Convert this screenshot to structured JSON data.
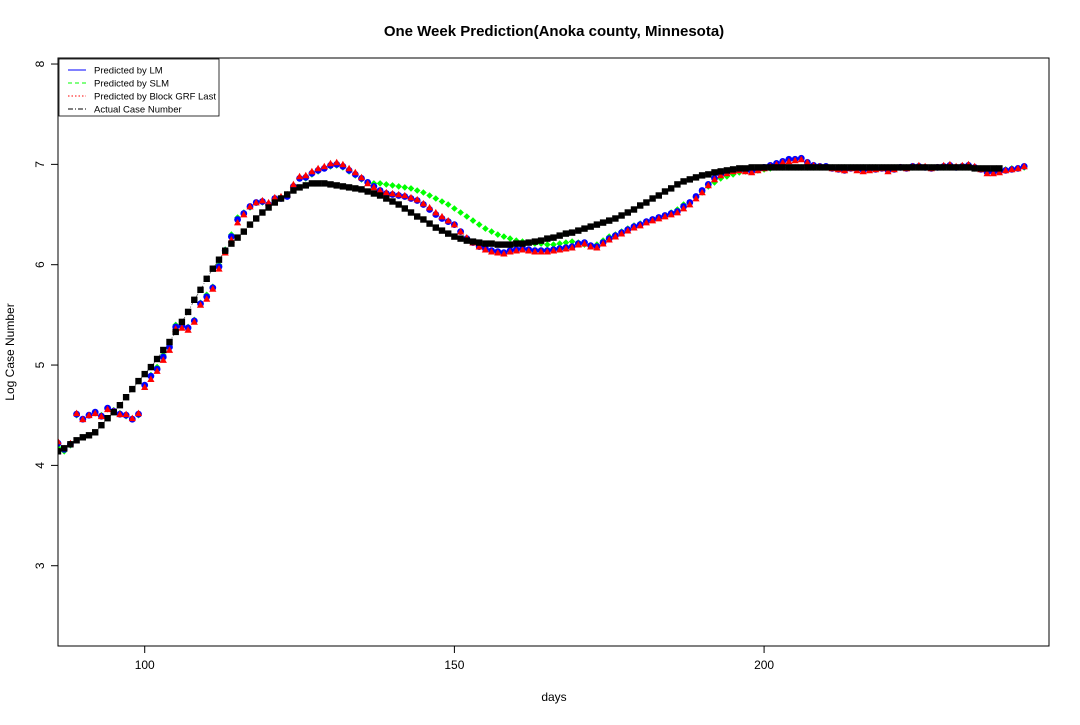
{
  "chart_data": {
    "type": "scatter",
    "title": "One Week Prediction(Anoka county, Minnesota)",
    "xlabel": "days",
    "ylabel": "Log Case Number",
    "xlim": [
      86,
      246
    ],
    "ylim": [
      2.2,
      8.06
    ],
    "x_ticks": [
      100,
      150,
      200
    ],
    "y_ticks": [
      3,
      4,
      5,
      6,
      7,
      8
    ],
    "grid": false,
    "legend_position": "top-left",
    "legend": [
      {
        "label": "Predicted by LM",
        "color": "#0000ff",
        "line": "solid",
        "series": "lm"
      },
      {
        "label": "Predicted by SLM",
        "color": "#00ff00",
        "line": "dashed",
        "series": "slm"
      },
      {
        "label": "Predicted by Block GRF Last",
        "color": "#ff0000",
        "line": "dotted",
        "series": "grf"
      },
      {
        "label": "Actual Case Number",
        "color": "#000000",
        "line": "dashdot",
        "series": "actual"
      }
    ],
    "series": [
      {
        "key": "actual",
        "name": "Actual Case Number",
        "color": "#000000",
        "marker": "square",
        "x_start": 86,
        "values": [
          4.14,
          4.17,
          4.21,
          4.25,
          4.28,
          4.3,
          4.33,
          4.4,
          4.47,
          4.53,
          4.6,
          4.68,
          4.76,
          4.84,
          4.91,
          4.98,
          5.06,
          5.15,
          5.23,
          5.33,
          5.43,
          5.53,
          5.65,
          5.75,
          5.86,
          5.96,
          6.05,
          6.14,
          6.21,
          6.27,
          6.33,
          6.4,
          6.46,
          6.52,
          6.57,
          6.62,
          6.66,
          6.7,
          6.74,
          6.77,
          6.79,
          6.81,
          6.81,
          6.81,
          6.8,
          6.79,
          6.78,
          6.77,
          6.76,
          6.75,
          6.73,
          6.71,
          6.69,
          6.66,
          6.63,
          6.6,
          6.56,
          6.52,
          6.48,
          6.45,
          6.41,
          6.37,
          6.34,
          6.31,
          6.28,
          6.26,
          6.24,
          6.23,
          6.22,
          6.21,
          6.21,
          6.2,
          6.2,
          6.2,
          6.21,
          6.21,
          6.22,
          6.23,
          6.24,
          6.26,
          6.27,
          6.29,
          6.31,
          6.32,
          6.34,
          6.36,
          6.38,
          6.4,
          6.42,
          6.44,
          6.46,
          6.49,
          6.52,
          6.55,
          6.59,
          6.62,
          6.66,
          6.69,
          6.73,
          6.76,
          6.8,
          6.83,
          6.85,
          6.87,
          6.89,
          6.9,
          6.92,
          6.93,
          6.94,
          6.95,
          6.96,
          6.96,
          6.97,
          6.97,
          6.97,
          6.97,
          6.97,
          6.97,
          6.97,
          6.97,
          6.97,
          6.97,
          6.97,
          6.97,
          6.97,
          6.97,
          6.97,
          6.97,
          6.97,
          6.97,
          6.97,
          6.97,
          6.97,
          6.97,
          6.97,
          6.97,
          6.97,
          6.97,
          6.97,
          6.97,
          6.97,
          6.97,
          6.97,
          6.97,
          6.97,
          6.97,
          6.97,
          6.97,
          6.96,
          6.96,
          6.96,
          6.96,
          6.96
        ]
      },
      {
        "key": "slm",
        "name": "Predicted by SLM",
        "color": "#00ff00",
        "marker": "diamond",
        "x_start": 86,
        "values": [
          4.18,
          4.14,
          4.2,
          4.5,
          4.46,
          4.5,
          4.52,
          4.5,
          4.56,
          4.55,
          4.52,
          4.49,
          4.46,
          4.5,
          4.8,
          4.9,
          4.98,
          5.1,
          5.2,
          5.4,
          5.38,
          5.38,
          5.45,
          5.62,
          5.7,
          5.78,
          6.0,
          6.15,
          6.3,
          6.47,
          6.52,
          6.57,
          6.62,
          6.62,
          6.6,
          6.65,
          6.66,
          6.68,
          6.78,
          6.86,
          6.86,
          6.9,
          6.93,
          6.96,
          6.98,
          6.99,
          6.97,
          6.93,
          6.89,
          6.85,
          6.82,
          6.81,
          6.81,
          6.8,
          6.79,
          6.78,
          6.77,
          6.76,
          6.74,
          6.72,
          6.69,
          6.66,
          6.63,
          6.6,
          6.56,
          6.52,
          6.48,
          6.44,
          6.4,
          6.36,
          6.33,
          6.3,
          6.28,
          6.26,
          6.24,
          6.23,
          6.22,
          6.21,
          6.21,
          6.2,
          6.2,
          6.21,
          6.22,
          6.23,
          6.22,
          6.2,
          6.19,
          6.2,
          6.24,
          6.28,
          6.3,
          6.33,
          6.36,
          6.39,
          6.41,
          6.43,
          6.45,
          6.47,
          6.49,
          6.52,
          6.55,
          6.6,
          6.62,
          6.67,
          6.72,
          6.78,
          6.82,
          6.86,
          6.88,
          6.9,
          6.92,
          6.93,
          6.93,
          6.94,
          6.95,
          6.96,
          6.97,
          6.97,
          6.97,
          6.97,
          6.97,
          6.97,
          6.97,
          6.97,
          6.97,
          6.97,
          6.97,
          6.97,
          6.97,
          6.97,
          6.97,
          6.97,
          6.97,
          6.97,
          6.97,
          6.97,
          6.97,
          6.97,
          6.97,
          6.97,
          6.97,
          6.97,
          6.97,
          6.97,
          6.97,
          6.97,
          6.97,
          6.97,
          6.96,
          6.96,
          6.95,
          6.95,
          6.95,
          6.95,
          6.96,
          6.96,
          6.97
        ]
      },
      {
        "key": "lm",
        "name": "Predicted by LM",
        "color": "#0000ff",
        "marker": "circle",
        "x_start": 86,
        "values": [
          4.22,
          4.16,
          4.21,
          4.51,
          4.46,
          4.5,
          4.53,
          4.49,
          4.57,
          4.54,
          4.51,
          4.5,
          4.46,
          4.51,
          4.8,
          4.89,
          4.96,
          5.08,
          5.18,
          5.38,
          5.39,
          5.37,
          5.44,
          5.61,
          5.68,
          5.77,
          5.98,
          6.14,
          6.28,
          6.45,
          6.51,
          6.58,
          6.62,
          6.63,
          6.6,
          6.66,
          6.66,
          6.68,
          6.78,
          6.86,
          6.87,
          6.91,
          6.94,
          6.96,
          6.99,
          7.0,
          6.98,
          6.94,
          6.9,
          6.86,
          6.82,
          6.78,
          6.74,
          6.71,
          6.7,
          6.69,
          6.68,
          6.66,
          6.64,
          6.6,
          6.55,
          6.5,
          6.46,
          6.43,
          6.4,
          6.33,
          6.26,
          6.22,
          6.18,
          6.16,
          6.14,
          6.13,
          6.12,
          6.14,
          6.15,
          6.16,
          6.15,
          6.14,
          6.14,
          6.14,
          6.15,
          6.16,
          6.17,
          6.18,
          6.21,
          6.22,
          6.19,
          6.18,
          6.22,
          6.26,
          6.29,
          6.32,
          6.35,
          6.38,
          6.4,
          6.43,
          6.45,
          6.47,
          6.49,
          6.51,
          6.53,
          6.58,
          6.62,
          6.68,
          6.74,
          6.8,
          6.86,
          6.9,
          6.92,
          6.94,
          6.95,
          6.94,
          6.93,
          6.95,
          6.97,
          6.99,
          7.01,
          7.03,
          7.05,
          7.05,
          7.06,
          7.02,
          6.99,
          6.98,
          6.98,
          6.96,
          6.95,
          6.94,
          6.96,
          6.95,
          6.94,
          6.95,
          6.95,
          6.96,
          6.94,
          6.95,
          6.97,
          6.96,
          6.98,
          6.98,
          6.97,
          6.96,
          6.97,
          6.98,
          6.99,
          6.97,
          6.98,
          6.99,
          6.97,
          6.95,
          6.92,
          6.92,
          6.93,
          6.94,
          6.95,
          6.96,
          6.98
        ]
      },
      {
        "key": "grf",
        "name": "Predicted by Block GRF Last",
        "color": "#ff0000",
        "marker": "triangle",
        "x_start": 86,
        "values": [
          4.24,
          4.17,
          4.22,
          4.52,
          4.46,
          4.5,
          4.52,
          4.49,
          4.56,
          4.54,
          4.51,
          4.51,
          4.47,
          4.52,
          4.78,
          4.86,
          4.94,
          5.05,
          5.15,
          5.36,
          5.37,
          5.35,
          5.43,
          5.6,
          5.66,
          5.76,
          5.96,
          6.12,
          6.25,
          6.42,
          6.5,
          6.58,
          6.62,
          6.64,
          6.62,
          6.67,
          6.68,
          6.7,
          6.8,
          6.88,
          6.89,
          6.93,
          6.96,
          6.98,
          7.01,
          7.02,
          7.0,
          6.96,
          6.92,
          6.87,
          6.81,
          6.77,
          6.74,
          6.72,
          6.71,
          6.7,
          6.69,
          6.67,
          6.65,
          6.61,
          6.57,
          6.52,
          6.48,
          6.44,
          6.4,
          6.33,
          6.27,
          6.22,
          6.18,
          6.15,
          6.13,
          6.12,
          6.11,
          6.13,
          6.14,
          6.15,
          6.14,
          6.13,
          6.13,
          6.13,
          6.14,
          6.15,
          6.16,
          6.17,
          6.2,
          6.21,
          6.18,
          6.17,
          6.21,
          6.25,
          6.28,
          6.31,
          6.34,
          6.37,
          6.39,
          6.42,
          6.44,
          6.46,
          6.48,
          6.5,
          6.52,
          6.56,
          6.6,
          6.66,
          6.72,
          6.79,
          6.85,
          6.89,
          6.91,
          6.93,
          6.94,
          6.93,
          6.92,
          6.94,
          6.96,
          6.98,
          7.0,
          7.02,
          7.03,
          7.04,
          7.05,
          7.02,
          6.99,
          6.98,
          6.97,
          6.96,
          6.95,
          6.94,
          6.96,
          6.94,
          6.93,
          6.94,
          6.95,
          6.96,
          6.93,
          6.95,
          6.97,
          6.96,
          6.98,
          6.99,
          6.98,
          6.96,
          6.97,
          6.99,
          7.0,
          6.98,
          6.99,
          7.0,
          6.98,
          6.95,
          6.91,
          6.91,
          6.92,
          6.94,
          6.95,
          6.96,
          6.98
        ]
      }
    ]
  }
}
